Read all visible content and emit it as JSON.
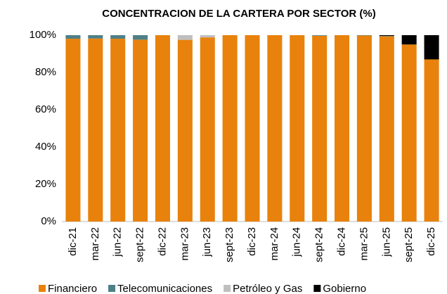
{
  "chart_data": {
    "type": "stacked_bar",
    "title": "CONCENTRACION DE LA CARTERA POR SECTOR (%)",
    "categories": [
      "dic-21",
      "mar-22",
      "jun-22",
      "sept-22",
      "dic-22",
      "mar-23",
      "jun-23",
      "sept-23",
      "dic-23",
      "mar-24",
      "jun-24",
      "sept-24",
      "dic-24",
      "mar-25",
      "jun-25",
      "sept-25",
      "dic-25"
    ],
    "series": [
      {
        "name": "Financiero",
        "color": "#e8820c",
        "values": [
          98.1,
          98.2,
          98.1,
          97.6,
          100,
          97.5,
          98.8,
          100,
          100,
          100,
          100,
          99.7,
          100,
          99.8,
          99.4,
          95,
          87
        ]
      },
      {
        "name": "Telecomunicaciones",
        "color": "#4e8087",
        "values": [
          1.9,
          1.8,
          1.9,
          2.4,
          0,
          0,
          0,
          0,
          0,
          0,
          0,
          0.3,
          0,
          0.2,
          0.2,
          0,
          0
        ]
      },
      {
        "name": "Petróleo y Gas",
        "color": "#bfbfbf",
        "values": [
          0,
          0,
          0,
          0,
          0,
          2.5,
          1.2,
          0,
          0,
          0,
          0,
          0,
          0,
          0,
          0,
          0,
          0
        ]
      },
      {
        "name": "Gobierno",
        "color": "#000000",
        "values": [
          0,
          0,
          0,
          0,
          0,
          0,
          0,
          0,
          0,
          0,
          0,
          0,
          0,
          0,
          0.4,
          5,
          13
        ]
      }
    ],
    "ylim": [
      0,
      100
    ],
    "yticks": [
      {
        "value": 0,
        "label": "0%"
      },
      {
        "value": 20,
        "label": "20%"
      },
      {
        "value": 40,
        "label": "40%"
      },
      {
        "value": 60,
        "label": "60%"
      },
      {
        "value": 80,
        "label": "80%"
      },
      {
        "value": 100,
        "label": "100%"
      }
    ],
    "legend": "bottom"
  }
}
